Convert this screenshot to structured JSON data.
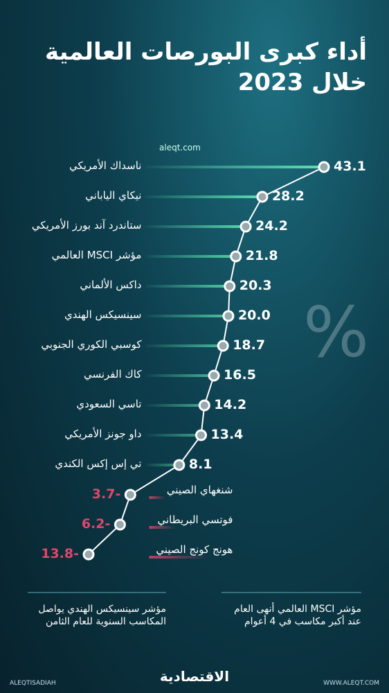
{
  "chart_data": {
    "type": "lollipop",
    "title": [
      "أداء كبرى البورصات العالمية",
      "خلال 2023"
    ],
    "source": "aleqt.com",
    "symbol": "%",
    "categories": [
      "ناسداك الأمريكي",
      "نيكاي الياباني",
      "ستاندرد آند بورز الأمريكي",
      "مؤشر MSCI العالمي",
      "داكس الألماني",
      "سينسيكس الهندي",
      "كوسبي الكوري الجنوبي",
      "كاك الفرنسي",
      "تاسي السعودي",
      "داو جونز الأمريكي",
      "تي إس إكس الكندي",
      "شنغهاي الصيني",
      "فوتسي البريطاني",
      "هونج كونج الصيني"
    ],
    "values": [
      43.1,
      28.2,
      24.2,
      21.8,
      20.3,
      20.0,
      18.7,
      16.5,
      14.2,
      13.4,
      8.1,
      -3.7,
      -6.2,
      -13.8
    ],
    "value_labels": [
      "43.1",
      "28.2",
      "24.2",
      "21.8",
      "20.3",
      "20.0",
      "18.7",
      "16.5",
      "14.2",
      "13.4",
      "8.1",
      "-3.7",
      "-6.2",
      "-13.8"
    ],
    "positive_color": "#5fe3b0",
    "negative_color": "#e0476a",
    "annotations": [
      "مؤشر MSCI العالمي أنهى العام عند أكبر مكاسب في 4 أعوام",
      "مؤشر سينسيكس الهندي يواصل المكاسب السنوية للعام الثامن"
    ],
    "footer": {
      "handle": "ALEQTISADIAH",
      "website": "WWW.ALEQT.COM",
      "logo": "الاقتصادية"
    }
  }
}
